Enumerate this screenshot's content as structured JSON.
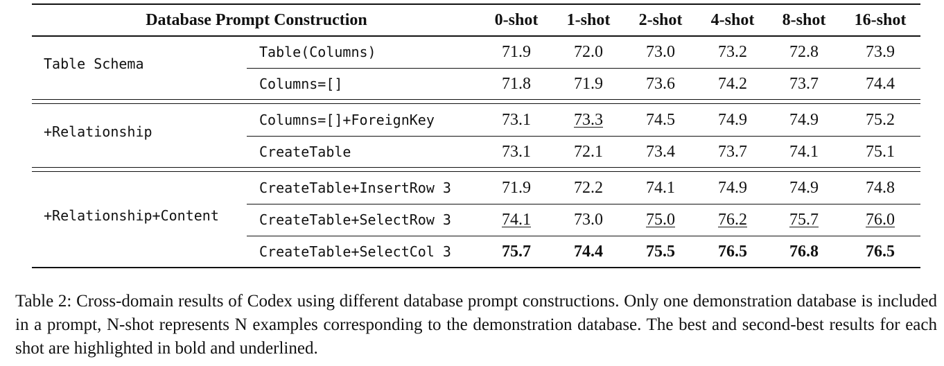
{
  "table": {
    "header": [
      "Database Prompt Construction",
      "0-shot",
      "1-shot",
      "2-shot",
      "4-shot",
      "8-shot",
      "16-shot"
    ],
    "groups": [
      {
        "label": "Table Schema",
        "rows": [
          {
            "prompt": "Table(Columns)",
            "cells": [
              "71.9",
              "72.0",
              "73.0",
              "73.2",
              "72.8",
              "73.9"
            ]
          },
          {
            "prompt": "Columns=[]",
            "cells": [
              "71.8",
              "71.9",
              "73.6",
              "74.2",
              "73.7",
              "74.4"
            ]
          }
        ]
      },
      {
        "label": "+Relationship",
        "rows": [
          {
            "prompt": "Columns=[]+ForeignKey",
            "cells": [
              "73.1",
              {
                "text": "73.3",
                "style": "underline"
              },
              "74.5",
              "74.9",
              "74.9",
              "75.2"
            ]
          },
          {
            "prompt": "CreateTable",
            "cells": [
              "73.1",
              "72.1",
              "73.4",
              "73.7",
              "74.1",
              "75.1"
            ]
          }
        ]
      },
      {
        "label": "+Relationship+Content",
        "rows": [
          {
            "prompt": "CreateTable+InsertRow 3",
            "cells": [
              "71.9",
              "72.2",
              "74.1",
              "74.9",
              "74.9",
              "74.8"
            ]
          },
          {
            "prompt": "CreateTable+SelectRow 3",
            "cells": [
              {
                "text": "74.1",
                "style": "underline"
              },
              "73.0",
              {
                "text": "75.0",
                "style": "underline"
              },
              {
                "text": "76.2",
                "style": "underline"
              },
              {
                "text": "75.7",
                "style": "underline"
              },
              {
                "text": "76.0",
                "style": "underline"
              }
            ]
          },
          {
            "prompt": "CreateTable+SelectCol 3",
            "cells": [
              {
                "text": "75.7",
                "style": "bold"
              },
              {
                "text": "74.4",
                "style": "bold"
              },
              {
                "text": "75.5",
                "style": "bold"
              },
              {
                "text": "76.5",
                "style": "bold"
              },
              {
                "text": "76.8",
                "style": "bold"
              },
              {
                "text": "76.5",
                "style": "bold"
              }
            ]
          }
        ]
      }
    ]
  },
  "caption": "Table 2: Cross-domain results of Codex using different database prompt constructions. Only one demonstration database is included in a prompt, N-shot represents N examples corresponding to the demonstration database. The best and second-best results for each shot are highlighted in bold and underlined."
}
